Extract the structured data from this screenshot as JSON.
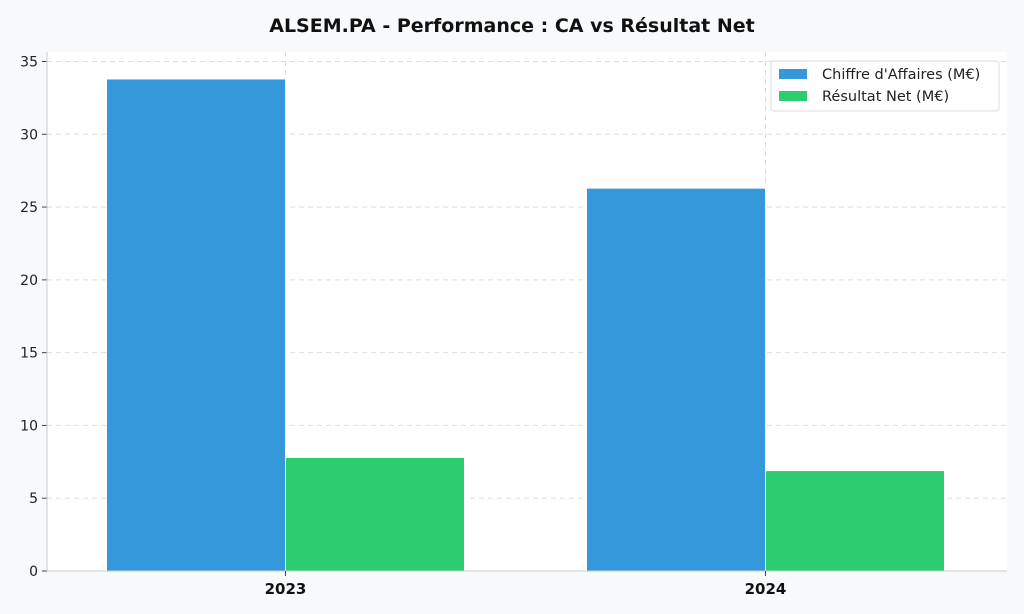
{
  "chart_data": {
    "type": "bar",
    "title": "ALSEM.PA - Performance : CA vs Résultat Net",
    "categories": [
      "2023",
      "2024"
    ],
    "series": [
      {
        "name": "Chiffre d'Affaires (M€)",
        "values": [
          33.8,
          26.3
        ],
        "color": "#3498db"
      },
      {
        "name": "Résultat Net (M€)",
        "values": [
          7.8,
          6.9
        ],
        "color": "#2ecc71"
      }
    ],
    "xlabel": "",
    "ylabel": "",
    "ylim": [
      0,
      35
    ],
    "yticks": [
      0,
      5,
      10,
      15,
      20,
      25,
      30,
      35
    ],
    "grid": true,
    "legend_position": "top-right",
    "background_color": "#f8f9fa",
    "plot_background_color": "#ffffff"
  }
}
